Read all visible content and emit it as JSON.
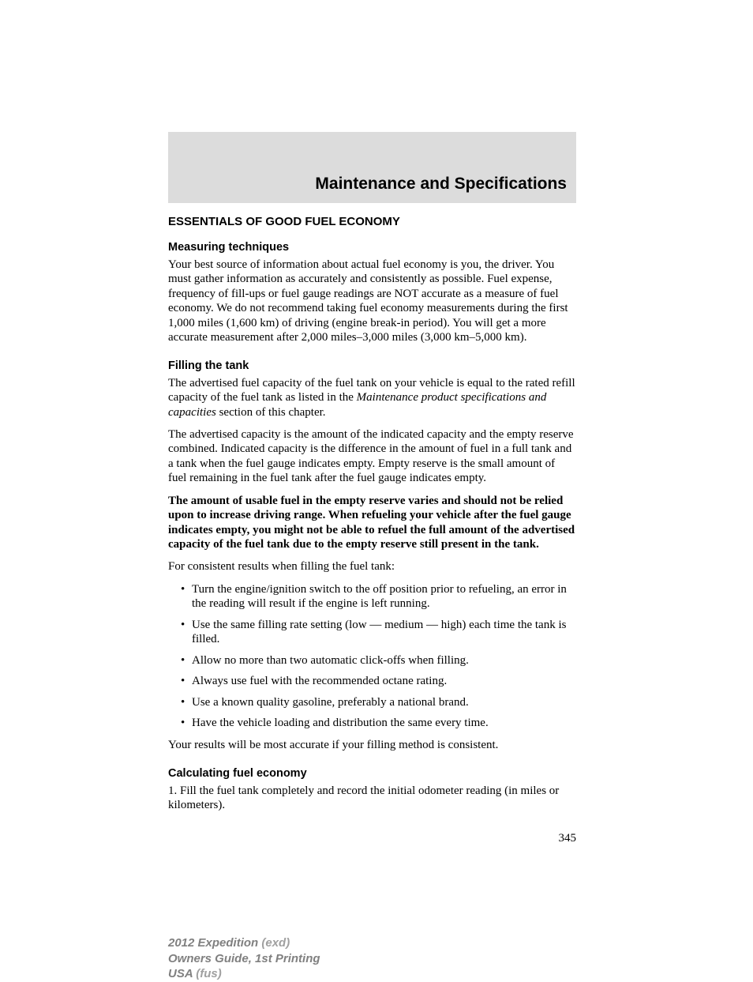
{
  "header": {
    "title": "Maintenance and Specifications"
  },
  "section1": {
    "heading": "ESSENTIALS OF GOOD FUEL ECONOMY",
    "sub1": "Measuring techniques",
    "p1": "Your best source of information about actual fuel economy is you, the driver. You must gather information as accurately and consistently as possible. Fuel expense, frequency of fill-ups or fuel gauge readings are NOT accurate as a measure of fuel economy. We do not recommend taking fuel economy measurements during the first 1,000 miles (1,600 km) of driving (engine break-in period). You will get a more accurate measurement after 2,000 miles–3,000 miles (3,000 km–5,000 km).",
    "sub2": "Filling the tank",
    "p2a": "The advertised fuel capacity of the fuel tank on your vehicle is equal to the rated refill capacity of the fuel tank as listed in the ",
    "p2b": "Maintenance product specifications and capacities",
    "p2c": " section of this chapter.",
    "p3": "The advertised capacity is the amount of the indicated capacity and the empty reserve combined. Indicated capacity is the difference in the amount of fuel in a full tank and a tank when the fuel gauge indicates empty. Empty reserve is the small amount of fuel remaining in the fuel tank after the fuel gauge indicates empty.",
    "p4": "The amount of usable fuel in the empty reserve varies and should not be relied upon to increase driving range. When refueling your vehicle after the fuel gauge indicates empty, you might not be able to refuel the full amount of the advertised capacity of the fuel tank due to the empty reserve still present in the tank.",
    "p5": "For consistent results when filling the fuel tank:",
    "bullets": [
      "Turn the engine/ignition switch to the off position prior to refueling, an error in the reading will result if the engine is left running.",
      "Use the same filling rate setting (low — medium — high) each time the tank is filled.",
      "Allow no more than two automatic click-offs when filling.",
      "Always use fuel with the recommended octane rating.",
      "Use a known quality gasoline, preferably a national brand.",
      "Have the vehicle loading and distribution the same every time."
    ],
    "p6": "Your results will be most accurate if your filling method is consistent.",
    "sub3": "Calculating fuel economy",
    "p7": "1. Fill the fuel tank completely and record the initial odometer reading (in miles or kilometers)."
  },
  "pageNumber": "345",
  "footer": {
    "line1a": "2012 Expedition ",
    "line1b": "(exd)",
    "line2": "Owners Guide, 1st Printing",
    "line3a": "USA ",
    "line3b": "(fus)"
  }
}
